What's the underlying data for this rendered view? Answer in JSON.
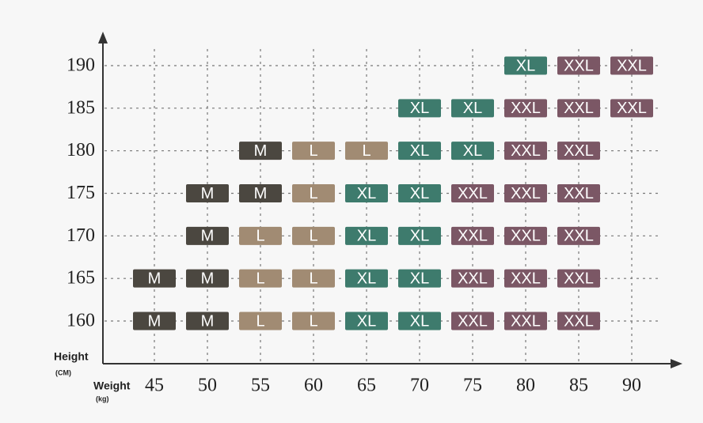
{
  "chart_data": {
    "type": "size-grid",
    "y_label": "Height",
    "y_unit": "(CM)",
    "x_label": "Weight",
    "x_unit": "(kg)",
    "xticks": [
      45,
      50,
      55,
      60,
      65,
      70,
      75,
      80,
      85,
      90
    ],
    "yticks": [
      160,
      165,
      170,
      175,
      180,
      185,
      190
    ],
    "grid": true,
    "colors": {
      "M": "#4b4740",
      "L": "#a18b73",
      "XL": "#3e7b6d",
      "XXL": "#7b5765"
    },
    "cells": [
      [
        "M",
        "M",
        "L",
        "L",
        "XL",
        "XL",
        "XXL",
        "XXL",
        "XXL",
        null
      ],
      [
        "M",
        "M",
        "L",
        "L",
        "XL",
        "XL",
        "XXL",
        "XXL",
        "XXL",
        null
      ],
      [
        null,
        "M",
        "L",
        "L",
        "XL",
        "XL",
        "XXL",
        "XXL",
        "XXL",
        null
      ],
      [
        null,
        "M",
        "M",
        "L",
        "XL",
        "XL",
        "XXL",
        "XXL",
        "XXL",
        null
      ],
      [
        null,
        null,
        "M",
        "L",
        "L",
        "XL",
        "XL",
        "XXL",
        "XXL",
        null
      ],
      [
        null,
        null,
        null,
        null,
        null,
        "XL",
        "XL",
        "XXL",
        "XXL",
        "XXL"
      ],
      [
        null,
        null,
        null,
        null,
        null,
        null,
        null,
        "XL",
        "XXL",
        "XXL"
      ]
    ]
  }
}
